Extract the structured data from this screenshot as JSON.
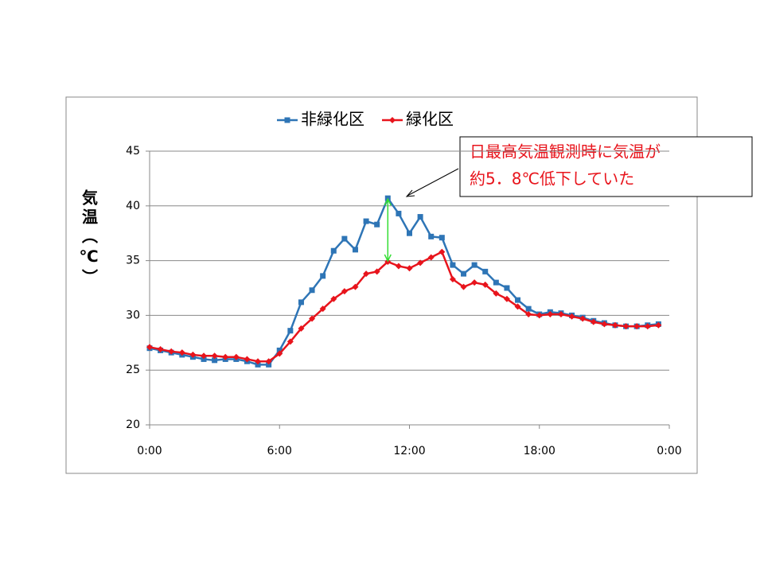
{
  "chart_data": {
    "type": "line",
    "y_label": "気温（℃）",
    "annotation": [
      "日最高気温観測時に気温が",
      "約5．8℃低下していた"
    ],
    "x": [
      0,
      0.5,
      1,
      1.5,
      2,
      2.5,
      3,
      3.5,
      4,
      4.5,
      5,
      5.5,
      6,
      6.5,
      7,
      7.5,
      8,
      8.5,
      9,
      9.5,
      10,
      10.5,
      11,
      11.5,
      12,
      12.5,
      13,
      13.5,
      14,
      14.5,
      15,
      15.5,
      16,
      16.5,
      17,
      17.5,
      18,
      18.5,
      19,
      19.5,
      20,
      20.5,
      21,
      21.5,
      22,
      22.5,
      23,
      23.5
    ],
    "series": [
      {
        "name": "非緑化区",
        "color": "#2e75b6",
        "marker": "square",
        "values": [
          27.0,
          26.8,
          26.6,
          26.4,
          26.2,
          26.0,
          25.9,
          26.0,
          26.0,
          25.8,
          25.5,
          25.5,
          26.8,
          28.6,
          31.2,
          32.3,
          33.6,
          35.9,
          37.0,
          36.0,
          38.6,
          38.3,
          40.7,
          39.3,
          37.5,
          39.0,
          37.2,
          37.1,
          34.6,
          33.8,
          34.6,
          34.0,
          33.0,
          32.5,
          31.4,
          30.6,
          30.1,
          30.3,
          30.2,
          30.0,
          29.8,
          29.5,
          29.3,
          29.1,
          29.0,
          29.0,
          29.1,
          29.2
        ]
      },
      {
        "name": "緑化区",
        "color": "#e8141c",
        "marker": "diamond",
        "values": [
          27.1,
          26.9,
          26.7,
          26.6,
          26.4,
          26.3,
          26.3,
          26.2,
          26.2,
          26.0,
          25.8,
          25.8,
          26.5,
          27.6,
          28.8,
          29.7,
          30.6,
          31.5,
          32.2,
          32.6,
          33.8,
          34.0,
          34.9,
          34.5,
          34.3,
          34.8,
          35.3,
          35.8,
          33.3,
          32.6,
          33.0,
          32.8,
          32.0,
          31.5,
          30.8,
          30.1,
          30.0,
          30.1,
          30.1,
          29.9,
          29.7,
          29.4,
          29.2,
          29.1,
          29.0,
          29.0,
          29.0,
          29.1
        ]
      }
    ],
    "xlim": [
      0,
      24
    ],
    "xticks": [
      {
        "value": 0,
        "label": "0:00"
      },
      {
        "value": 6,
        "label": "6:00"
      },
      {
        "value": 12,
        "label": "12:00"
      },
      {
        "value": 18,
        "label": "18:00"
      },
      {
        "value": 24,
        "label": "0:00"
      }
    ],
    "ylim": [
      20,
      45
    ],
    "yticks": [
      20,
      25,
      30,
      35,
      40,
      45
    ],
    "grid": true,
    "legend": "top"
  }
}
